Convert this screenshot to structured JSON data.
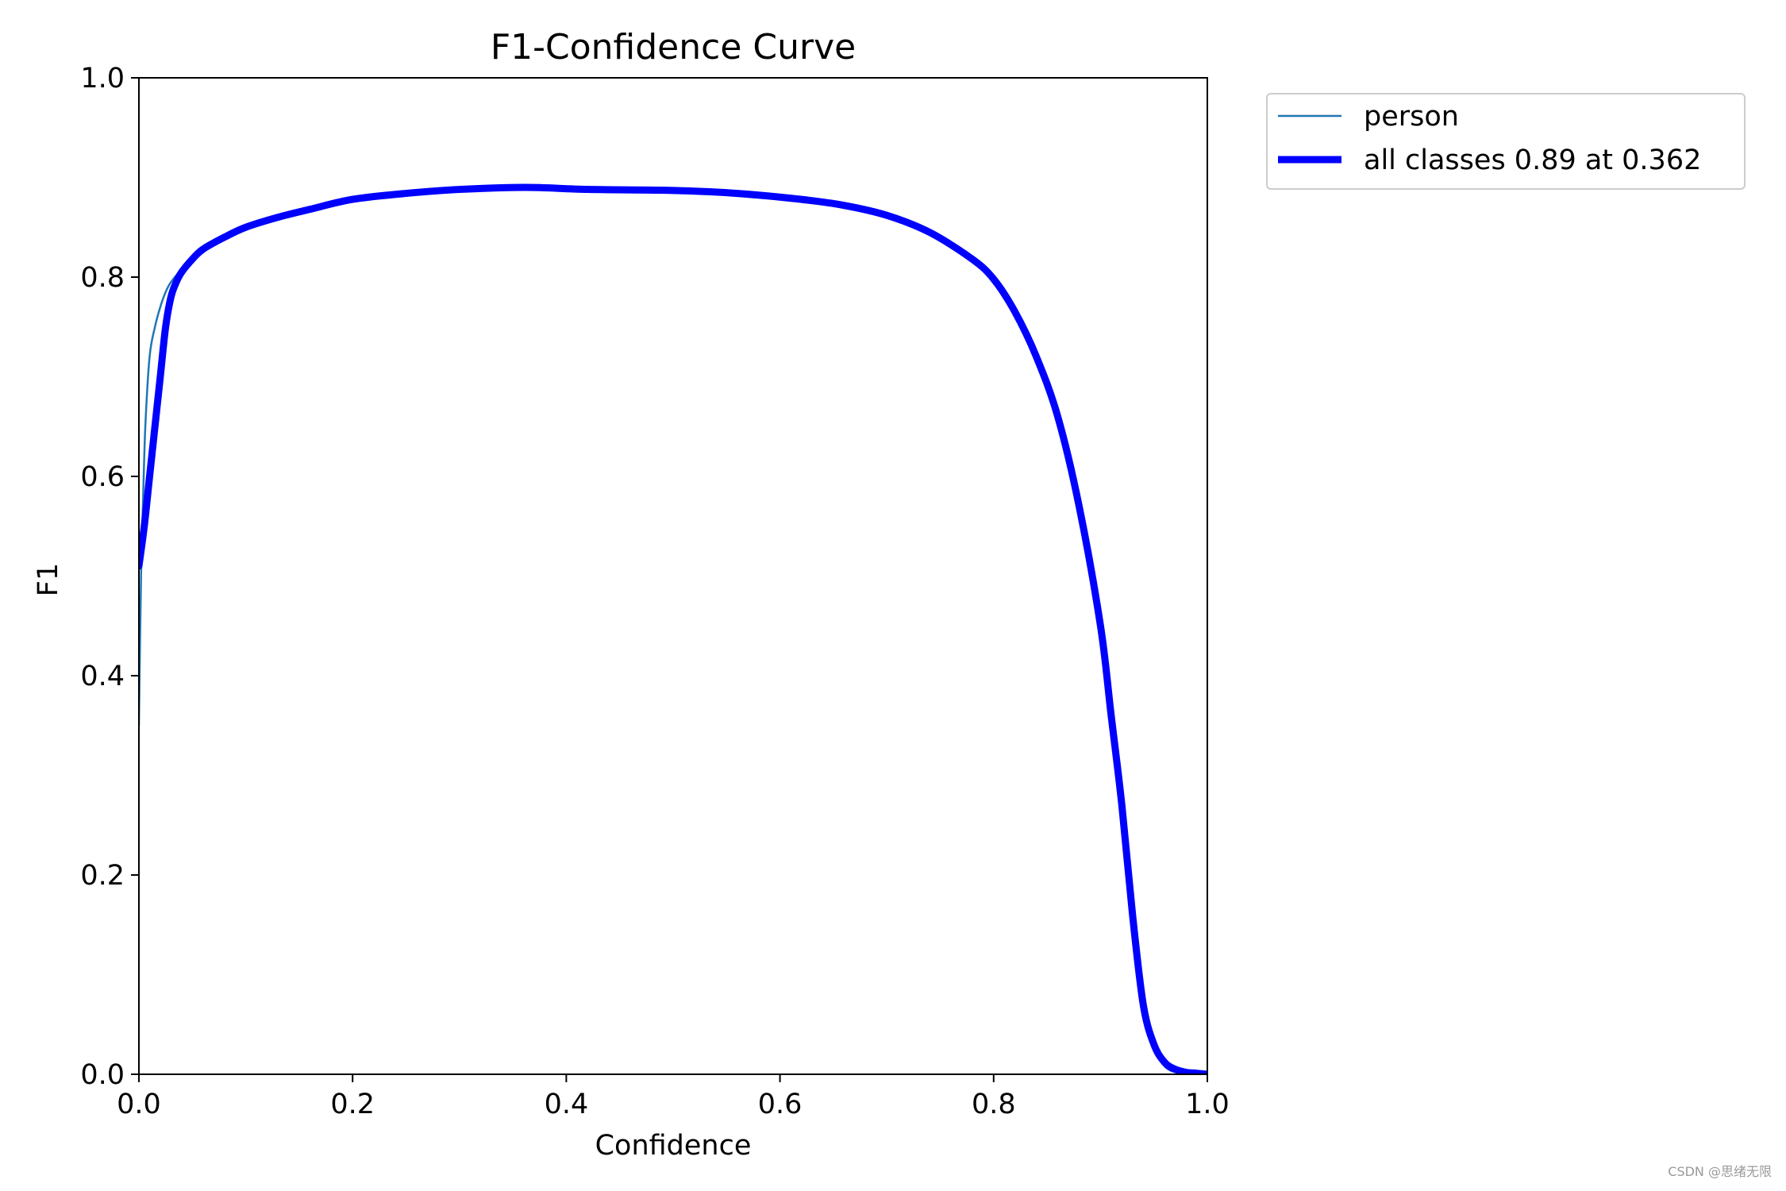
{
  "chart_data": {
    "type": "line",
    "title": "F1-Confidence Curve",
    "xlabel": "Confidence",
    "ylabel": "F1",
    "xlim": [
      0,
      1
    ],
    "ylim": [
      0,
      1
    ],
    "xticks": [
      "0.0",
      "0.2",
      "0.4",
      "0.6",
      "0.8",
      "1.0"
    ],
    "yticks": [
      "0.0",
      "0.2",
      "0.4",
      "0.6",
      "0.8",
      "1.0"
    ],
    "grid": false,
    "legend_position": "outside-top-right",
    "series": [
      {
        "name": "person",
        "color": "#1f77b4",
        "line_width": "thin",
        "x": [
          0.0,
          0.002,
          0.004,
          0.006,
          0.01,
          0.015,
          0.02,
          0.025,
          0.03,
          0.04,
          0.05,
          0.06,
          0.08,
          0.1,
          0.13,
          0.16,
          0.2,
          0.25,
          0.3,
          0.362,
          0.42,
          0.5,
          0.56,
          0.62,
          0.66,
          0.7,
          0.74,
          0.78,
          0.8,
          0.82,
          0.84,
          0.86,
          0.88,
          0.9,
          0.91,
          0.92,
          0.93,
          0.94,
          0.95,
          0.96,
          0.97,
          0.98,
          0.99,
          1.0
        ],
        "y": [
          0.35,
          0.5,
          0.58,
          0.65,
          0.72,
          0.75,
          0.77,
          0.785,
          0.795,
          0.808,
          0.82,
          0.83,
          0.84,
          0.85,
          0.86,
          0.87,
          0.878,
          0.884,
          0.888,
          0.89,
          0.888,
          0.887,
          0.884,
          0.878,
          0.872,
          0.862,
          0.845,
          0.818,
          0.798,
          0.765,
          0.72,
          0.66,
          0.57,
          0.45,
          0.36,
          0.27,
          0.16,
          0.06,
          0.025,
          0.008,
          0.002,
          0.001,
          0.0,
          0.0
        ]
      },
      {
        "name": "all classes 0.89 at 0.362",
        "color": "#0000ff",
        "line_width": "thick",
        "x": [
          0.0,
          0.005,
          0.01,
          0.015,
          0.02,
          0.025,
          0.03,
          0.035,
          0.04,
          0.05,
          0.06,
          0.08,
          0.1,
          0.13,
          0.16,
          0.2,
          0.25,
          0.3,
          0.362,
          0.42,
          0.5,
          0.56,
          0.62,
          0.66,
          0.7,
          0.74,
          0.78,
          0.8,
          0.82,
          0.84,
          0.86,
          0.88,
          0.9,
          0.91,
          0.92,
          0.93,
          0.94,
          0.95,
          0.96,
          0.97,
          0.98,
          0.99,
          1.0
        ],
        "y": [
          0.51,
          0.55,
          0.6,
          0.65,
          0.7,
          0.75,
          0.78,
          0.795,
          0.805,
          0.818,
          0.828,
          0.84,
          0.85,
          0.86,
          0.868,
          0.878,
          0.884,
          0.888,
          0.89,
          0.888,
          0.887,
          0.884,
          0.878,
          0.872,
          0.862,
          0.845,
          0.818,
          0.798,
          0.765,
          0.72,
          0.66,
          0.57,
          0.45,
          0.36,
          0.27,
          0.16,
          0.07,
          0.03,
          0.012,
          0.005,
          0.002,
          0.001,
          0.0
        ]
      }
    ]
  },
  "watermark": "CSDN @思绪无限"
}
